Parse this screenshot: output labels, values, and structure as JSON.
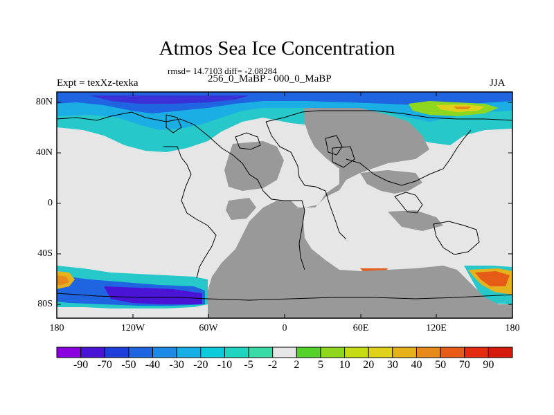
{
  "title": "Atmos Sea Ice Concentration",
  "stats": "rmsd= 14.7103 diff= -2.08284",
  "subtitle": "256_0_MaBP - 000_0_MaBP",
  "left_label": "Expt = texXz-texka",
  "right_label": "JJA",
  "map": {
    "projection": "cylindrical equidistant",
    "lon_range": [
      -180,
      180
    ],
    "lat_range": [
      -90,
      90
    ],
    "lat_ticks": [
      "80N",
      "40N",
      "0",
      "40S",
      "80S"
    ],
    "lon_ticks": [
      "180",
      "120W",
      "60W",
      "0",
      "60E",
      "120E",
      "180"
    ],
    "land_color": "#999999",
    "nodata_color": "#e6e6e6"
  },
  "colorbar": {
    "labels": [
      "-90",
      "-70",
      "-50",
      "-40",
      "-30",
      "-20",
      "-10",
      "-5",
      "-2",
      "2",
      "5",
      "10",
      "20",
      "30",
      "40",
      "50",
      "70",
      "90"
    ],
    "colors": [
      "#8a00e0",
      "#4a14d6",
      "#1d3ed8",
      "#1f64e0",
      "#1d8ae6",
      "#17aee6",
      "#0ccbdd",
      "#1ed6c0",
      "#3ad9a6",
      "#e6e6e6",
      "#55d22a",
      "#8fd61f",
      "#c5dc14",
      "#e0d21a",
      "#e6b21c",
      "#e88a1a",
      "#e65c16",
      "#e32c10",
      "#d41a0a"
    ]
  }
}
